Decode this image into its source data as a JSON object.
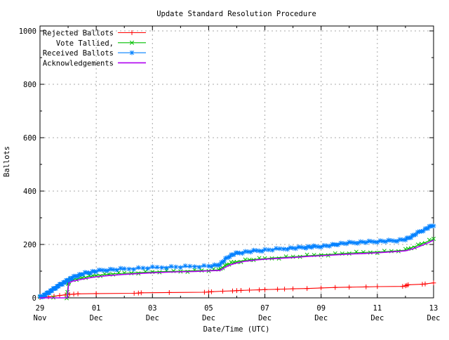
{
  "chart_data": {
    "type": "line",
    "title": "Update Standard Resolution Procedure",
    "xlabel": "Date/Time (UTC)",
    "ylabel": "Ballots",
    "ylim": [
      0,
      1000
    ],
    "y_major_ticks": [
      0,
      200,
      400,
      600,
      800,
      1000
    ],
    "y_minor_ticks": [
      100,
      300,
      500,
      700,
      900
    ],
    "xlim_days": [
      0,
      14
    ],
    "x_ticks": [
      {
        "day": 0,
        "line1": "29",
        "line2": "Nov"
      },
      {
        "day": 2,
        "line1": "01",
        "line2": "Dec"
      },
      {
        "day": 4,
        "line1": "03",
        "line2": "Dec"
      },
      {
        "day": 6,
        "line1": "05",
        "line2": "Dec"
      },
      {
        "day": 8,
        "line1": "07",
        "line2": "Dec"
      },
      {
        "day": 10,
        "line1": "09",
        "line2": "Dec"
      },
      {
        "day": 12,
        "line1": "11",
        "line2": "Dec"
      },
      {
        "day": 14,
        "line1": "13",
        "line2": "Dec"
      }
    ],
    "x_minor_tick_days": [
      1,
      3,
      5,
      7,
      9,
      11,
      13
    ],
    "grid": true,
    "grid_color": "#a8a8a8",
    "legend_position": "top-left-inside",
    "series": [
      {
        "name": "Rejected Ballots",
        "color": "#ff0000",
        "marker": "plus",
        "points": [
          [
            0,
            1
          ],
          [
            0.3,
            4
          ],
          [
            0.5,
            6
          ],
          [
            0.7,
            9
          ],
          [
            0.9,
            11
          ],
          [
            1.05,
            13
          ],
          [
            1.2,
            14
          ],
          [
            1.35,
            15
          ],
          [
            2.0,
            16
          ],
          [
            3.35,
            17
          ],
          [
            3.5,
            18
          ],
          [
            3.6,
            19
          ],
          [
            4.6,
            20
          ],
          [
            5.85,
            21
          ],
          [
            6.0,
            22
          ],
          [
            6.1,
            23
          ],
          [
            6.5,
            25
          ],
          [
            6.85,
            26
          ],
          [
            7.0,
            27
          ],
          [
            7.15,
            28
          ],
          [
            7.45,
            29
          ],
          [
            7.8,
            30
          ],
          [
            8.0,
            31
          ],
          [
            8.45,
            32
          ],
          [
            8.7,
            33
          ],
          [
            9.0,
            34
          ],
          [
            9.5,
            35
          ],
          [
            10.0,
            37
          ],
          [
            10.5,
            39
          ],
          [
            11.0,
            40
          ],
          [
            11.6,
            41
          ],
          [
            12.0,
            42
          ],
          [
            12.9,
            43
          ],
          [
            13.0,
            45
          ],
          [
            13.05,
            47
          ],
          [
            13.1,
            49
          ],
          [
            13.6,
            51
          ],
          [
            13.7,
            52
          ],
          [
            14.0,
            56
          ]
        ]
      },
      {
        "name": "Vote Tallied,",
        "color": "#00c000",
        "marker": "cross",
        "points": [
          [
            0,
            0
          ],
          [
            0.95,
            0
          ],
          [
            1.0,
            50
          ],
          [
            1.03,
            62
          ],
          [
            1.1,
            67
          ],
          [
            1.3,
            71
          ],
          [
            1.5,
            75
          ],
          [
            1.75,
            80
          ],
          [
            2.0,
            84
          ],
          [
            2.3,
            87
          ],
          [
            2.6,
            90
          ],
          [
            3.0,
            92
          ],
          [
            3.5,
            95
          ],
          [
            4.0,
            97
          ],
          [
            4.5,
            99
          ],
          [
            5.0,
            100
          ],
          [
            5.5,
            102
          ],
          [
            6.0,
            103
          ],
          [
            6.35,
            105
          ],
          [
            6.5,
            115
          ],
          [
            6.65,
            124
          ],
          [
            6.8,
            130
          ],
          [
            7.0,
            135
          ],
          [
            7.3,
            141
          ],
          [
            7.6,
            144
          ],
          [
            8.0,
            147
          ],
          [
            8.5,
            151
          ],
          [
            9.0,
            154
          ],
          [
            9.5,
            158
          ],
          [
            10.0,
            161
          ],
          [
            10.5,
            164
          ],
          [
            11.0,
            168
          ],
          [
            11.5,
            170
          ],
          [
            12.0,
            172
          ],
          [
            12.5,
            175
          ],
          [
            13.0,
            179
          ],
          [
            13.2,
            187
          ],
          [
            13.45,
            197
          ],
          [
            13.7,
            207
          ],
          [
            14.0,
            220
          ]
        ]
      },
      {
        "name": "Received Ballots",
        "color": "#0080ff",
        "marker": "asterisk",
        "points": [
          [
            0,
            2
          ],
          [
            0.1,
            7
          ],
          [
            0.2,
            13
          ],
          [
            0.3,
            20
          ],
          [
            0.4,
            27
          ],
          [
            0.5,
            34
          ],
          [
            0.6,
            41
          ],
          [
            0.7,
            48
          ],
          [
            0.8,
            54
          ],
          [
            0.9,
            60
          ],
          [
            1.0,
            66
          ],
          [
            1.1,
            73
          ],
          [
            1.25,
            80
          ],
          [
            1.4,
            86
          ],
          [
            1.6,
            92
          ],
          [
            1.8,
            96
          ],
          [
            2.0,
            100
          ],
          [
            2.3,
            104
          ],
          [
            2.6,
            106
          ],
          [
            3.0,
            108
          ],
          [
            3.5,
            111
          ],
          [
            4.0,
            113
          ],
          [
            4.5,
            115
          ],
          [
            5.0,
            116
          ],
          [
            5.5,
            118
          ],
          [
            6.0,
            119
          ],
          [
            6.3,
            121
          ],
          [
            6.45,
            130
          ],
          [
            6.6,
            145
          ],
          [
            6.75,
            157
          ],
          [
            6.9,
            164
          ],
          [
            7.1,
            169
          ],
          [
            7.4,
            173
          ],
          [
            7.7,
            176
          ],
          [
            8.0,
            179
          ],
          [
            8.4,
            182
          ],
          [
            8.8,
            185
          ],
          [
            9.1,
            187
          ],
          [
            9.4,
            189
          ],
          [
            9.6,
            191
          ],
          [
            9.8,
            192
          ],
          [
            10.1,
            194
          ],
          [
            10.4,
            197
          ],
          [
            10.6,
            202
          ],
          [
            10.9,
            205
          ],
          [
            11.2,
            207
          ],
          [
            11.5,
            209
          ],
          [
            11.8,
            210
          ],
          [
            12.1,
            212
          ],
          [
            12.4,
            213
          ],
          [
            12.7,
            215
          ],
          [
            13.0,
            219
          ],
          [
            13.15,
            226
          ],
          [
            13.3,
            235
          ],
          [
            13.5,
            247
          ],
          [
            13.7,
            257
          ],
          [
            13.85,
            265
          ],
          [
            14.0,
            273
          ]
        ]
      },
      {
        "name": "Acknowledgements",
        "color": "#b000f0",
        "marker": "none",
        "points": [
          [
            0,
            0
          ],
          [
            0.97,
            0
          ],
          [
            1.02,
            55
          ],
          [
            1.15,
            62
          ],
          [
            1.4,
            68
          ],
          [
            1.7,
            74
          ],
          [
            2.0,
            79
          ],
          [
            2.5,
            84
          ],
          [
            3.0,
            88
          ],
          [
            3.5,
            91
          ],
          [
            4.0,
            94
          ],
          [
            4.5,
            96
          ],
          [
            5.0,
            98
          ],
          [
            5.5,
            99
          ],
          [
            6.0,
            101
          ],
          [
            6.4,
            103
          ],
          [
            6.55,
            112
          ],
          [
            6.75,
            123
          ],
          [
            7.0,
            131
          ],
          [
            7.3,
            137
          ],
          [
            7.7,
            142
          ],
          [
            8.0,
            145
          ],
          [
            8.5,
            148
          ],
          [
            9.0,
            151
          ],
          [
            9.5,
            155
          ],
          [
            10.0,
            158
          ],
          [
            10.5,
            161
          ],
          [
            11.0,
            164
          ],
          [
            11.5,
            166
          ],
          [
            12.0,
            169
          ],
          [
            12.5,
            172
          ],
          [
            13.0,
            176
          ],
          [
            13.3,
            185
          ],
          [
            13.6,
            197
          ],
          [
            13.8,
            206
          ],
          [
            14.0,
            216
          ]
        ]
      }
    ]
  }
}
